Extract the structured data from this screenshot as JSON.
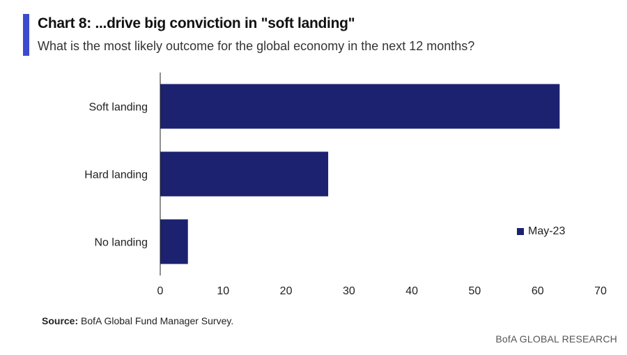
{
  "header": {
    "title": "Chart 8: ...drive big conviction in \"soft landing\"",
    "subtitle": "What is the most likely outcome for the global economy in the next 12 months?"
  },
  "chart_data": {
    "type": "bar",
    "orientation": "horizontal",
    "categories": [
      "Soft landing",
      "Hard landing",
      "No landing"
    ],
    "series": [
      {
        "name": "May-23",
        "values": [
          63.5,
          26.7,
          4.4
        ],
        "color": "#1c2270"
      }
    ],
    "xlim": [
      0,
      70
    ],
    "xticks": [
      0,
      10,
      20,
      30,
      40,
      50,
      60,
      70
    ],
    "grid": false,
    "legend_position": "right"
  },
  "legend": {
    "label": "May-23"
  },
  "footer": {
    "source_label": "Source:",
    "source_text": " BofA Global Fund Manager Survey.",
    "brand": "BofA GLOBAL RESEARCH"
  }
}
